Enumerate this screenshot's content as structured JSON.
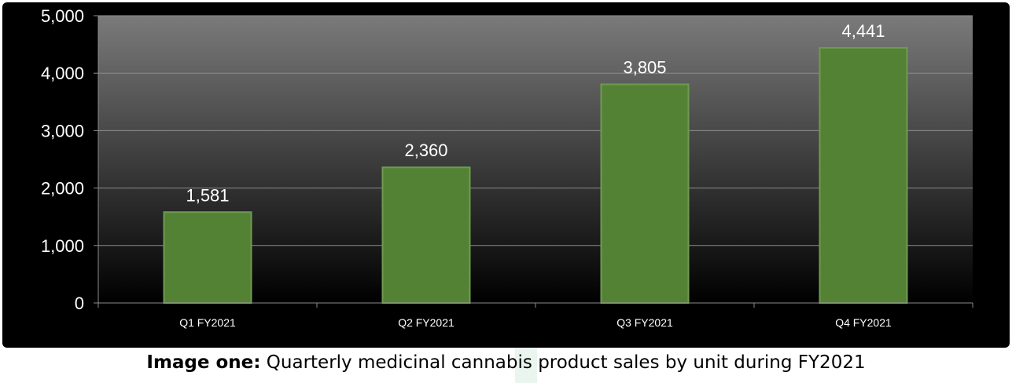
{
  "chart_data": {
    "type": "bar",
    "categories": [
      "Q1 FY2021",
      "Q2 FY2021",
      "Q3 FY2021",
      "Q4 FY2021"
    ],
    "values": [
      1581,
      2360,
      3805,
      4441
    ],
    "data_labels": [
      "1,581",
      "2,360",
      "3,805",
      "4,441"
    ],
    "yticks": [
      0,
      1000,
      2000,
      3000,
      4000,
      5000
    ],
    "ytick_labels": [
      "0",
      "1,000",
      "2,000",
      "3,000",
      "4,000",
      "5,000"
    ],
    "ylim": [
      0,
      5000
    ],
    "grid": true,
    "legend": "none",
    "colors": {
      "bar": "#548235",
      "bar_border": "#6f9a51",
      "plot_gradient_top": "#7a7a7a",
      "plot_gradient_bottom": "#000000",
      "gridline": "#8c8c8c",
      "text": "#ffffff"
    }
  },
  "caption": {
    "bold": "Image one:",
    "text": " Quarterly medicinal cannabis product sales by unit during FY2021"
  }
}
